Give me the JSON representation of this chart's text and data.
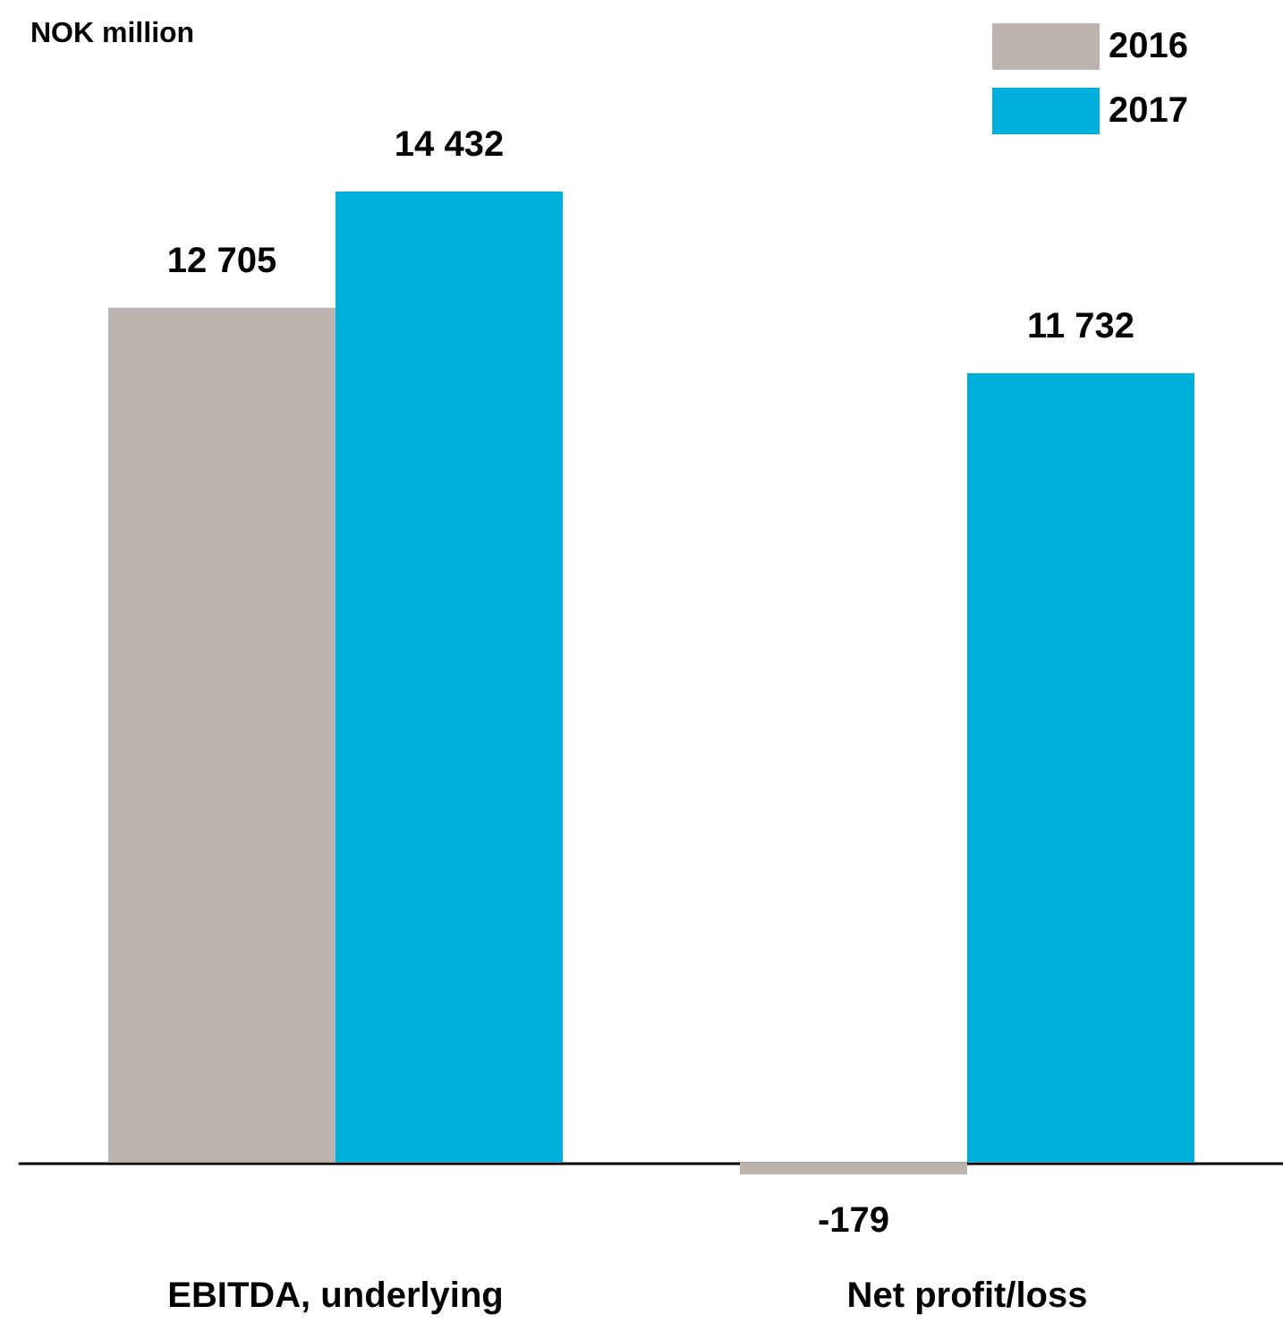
{
  "chart_data": {
    "type": "bar",
    "ylabel": "NOK million",
    "categories": [
      "EBITDA, underlying",
      "Net profit/loss"
    ],
    "series": [
      {
        "name": "2016",
        "color": "#bcb3af",
        "values": [
          12705,
          -179
        ],
        "value_labels": [
          "12 705",
          "-179"
        ]
      },
      {
        "name": "2017",
        "color": "#00b0dc",
        "values": [
          14432,
          11732
        ],
        "value_labels": [
          "14 432",
          "11 732"
        ]
      }
    ],
    "legend": "top right",
    "grid": false
  }
}
